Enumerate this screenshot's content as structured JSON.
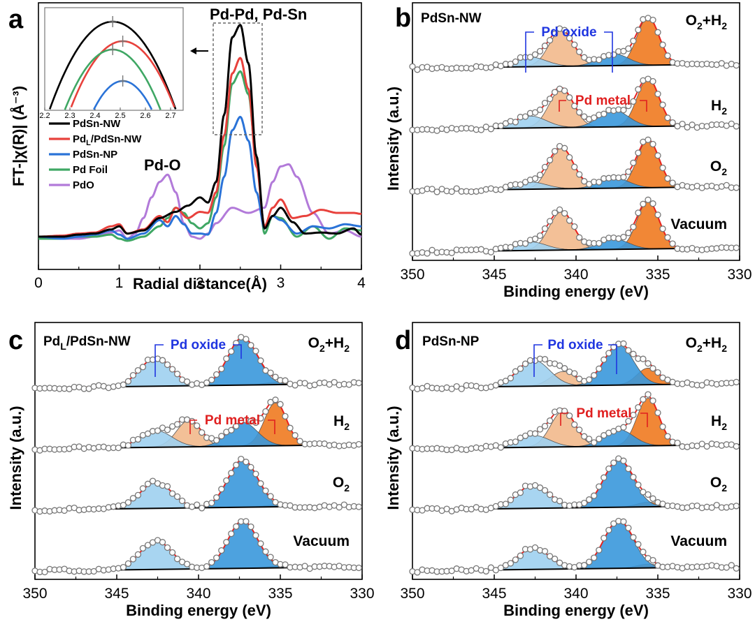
{
  "panel_labels": [
    "a",
    "b",
    "c",
    "d"
  ],
  "colors": {
    "pdsn_nw": "#000000",
    "pdl_pdsn_nw": "#e8413c",
    "pdsn_np": "#2a73d8",
    "pd_foil": "#3fa764",
    "pdo": "#b27ad9",
    "oxide_light": "#9fd0f0",
    "oxide_dark": "#3a98dc",
    "metal_light": "#f2b98c",
    "metal_dark": "#ef7a20",
    "tag_blue": "#1f35e0",
    "tag_red": "#e01f1f"
  },
  "chart_data": [
    {
      "panel": "a",
      "type": "line",
      "title": "",
      "xlabel": "Radial distance(Å)",
      "ylabel": "FT-|χ(R)| (Å⁻³)",
      "xlim": [
        0,
        4
      ],
      "xticks": [
        "0",
        "1",
        "2",
        "3",
        "4"
      ],
      "annotations": [
        "Pd-Pd, Pd-Sn",
        "Pd-O"
      ],
      "series": [
        {
          "name": "PdSn-NW",
          "x": [
            0,
            0.3,
            0.5,
            0.7,
            0.9,
            1.0,
            1.1,
            1.3,
            1.5,
            1.7,
            1.85,
            2.0,
            2.1,
            2.2,
            2.3,
            2.4,
            2.5,
            2.6,
            2.7,
            2.8,
            2.9,
            3.0,
            3.15,
            3.3,
            3.5,
            3.7,
            3.9,
            4.0
          ],
          "y": [
            0.02,
            0.02,
            0.04,
            0.05,
            0.09,
            0.12,
            0.05,
            0.08,
            0.2,
            0.26,
            0.32,
            0.4,
            0.35,
            0.55,
            1.2,
            1.95,
            2.07,
            1.7,
            0.8,
            0.1,
            0.22,
            0.3,
            0.16,
            0.05,
            0.06,
            0.05,
            0.1,
            0.04
          ]
        },
        {
          "name": "PdL/PdSn-NW",
          "x": [
            0,
            0.3,
            0.5,
            0.7,
            0.9,
            1.0,
            1.1,
            1.3,
            1.5,
            1.6,
            1.7,
            1.85,
            2.0,
            2.1,
            2.2,
            2.3,
            2.4,
            2.5,
            2.6,
            2.7,
            2.8,
            2.9,
            3.0,
            3.15,
            3.3,
            3.5,
            3.7,
            3.9,
            4.0
          ],
          "y": [
            0.02,
            0.03,
            0.05,
            0.06,
            0.12,
            0.14,
            0.05,
            0.09,
            0.22,
            0.16,
            0.3,
            0.2,
            0.26,
            0.25,
            0.45,
            1.0,
            1.6,
            1.75,
            1.45,
            0.7,
            0.12,
            0.3,
            0.38,
            0.2,
            0.22,
            0.28,
            0.25,
            0.25,
            0.24
          ]
        },
        {
          "name": "PdSn-NP",
          "x": [
            0,
            0.3,
            0.5,
            0.7,
            0.9,
            1.0,
            1.1,
            1.3,
            1.5,
            1.6,
            1.7,
            1.8,
            1.9,
            2.0,
            2.1,
            2.2,
            2.3,
            2.4,
            2.5,
            2.6,
            2.7,
            2.8,
            2.9,
            3.0,
            3.2,
            3.4,
            3.6,
            3.8,
            4.0
          ],
          "y": [
            0.02,
            0.0,
            0.02,
            0.04,
            0.08,
            0.04,
            0.0,
            0.05,
            0.18,
            0.12,
            0.22,
            0.14,
            0.05,
            0.05,
            0.04,
            0.25,
            0.6,
            1.05,
            1.18,
            0.95,
            0.45,
            0.1,
            0.22,
            0.18,
            0.05,
            0.12,
            0.1,
            0.14,
            0.12
          ]
        },
        {
          "name": "Pd Foil",
          "x": [
            0,
            0.3,
            0.5,
            0.7,
            0.9,
            1.0,
            1.1,
            1.3,
            1.5,
            1.6,
            1.7,
            1.8,
            1.9,
            2.0,
            2.1,
            2.2,
            2.3,
            2.4,
            2.5,
            2.6,
            2.7,
            2.8,
            2.9,
            3.0,
            3.2,
            3.4,
            3.6,
            3.8,
            4.0
          ],
          "y": [
            0.0,
            0.0,
            0.02,
            0.02,
            0.04,
            0.0,
            -0.02,
            0.02,
            0.12,
            0.2,
            0.3,
            0.25,
            0.15,
            0.1,
            0.15,
            0.4,
            0.9,
            1.5,
            1.62,
            1.4,
            0.75,
            0.05,
            0.22,
            0.2,
            0.02,
            0.12,
            0.0,
            0.1,
            0.08
          ]
        },
        {
          "name": "PdO",
          "x": [
            0,
            0.3,
            0.5,
            0.7,
            0.9,
            1.0,
            1.1,
            1.2,
            1.3,
            1.4,
            1.5,
            1.6,
            1.7,
            1.8,
            1.9,
            2.0,
            2.1,
            2.2,
            2.4,
            2.6,
            2.8,
            2.9,
            3.0,
            3.1,
            3.2,
            3.4,
            3.6,
            3.8,
            4.0
          ],
          "y": [
            0.0,
            0.0,
            0.0,
            0.02,
            0.06,
            0.08,
            0.0,
            0.05,
            0.2,
            0.4,
            0.55,
            0.62,
            0.45,
            0.15,
            0.02,
            0.0,
            0.05,
            0.15,
            0.3,
            0.25,
            0.3,
            0.55,
            0.7,
            0.72,
            0.6,
            0.25,
            0.05,
            0.08,
            0.02
          ]
        }
      ],
      "legend": [
        "PdSn-NW",
        "PdL/PdSn-NW",
        "PdSn-NP",
        "Pd Foil",
        "PdO"
      ],
      "legend_position": "upper-left",
      "inset": {
        "xlim": [
          2.2,
          2.75
        ],
        "xticks": [
          "2.2",
          "2.3",
          "2.4",
          "2.5",
          "2.6",
          "2.7"
        ]
      }
    },
    {
      "panel": "b",
      "type": "line",
      "sample": "PdSn-NW",
      "xlabel": "Binding energy (eV)",
      "ylabel": "Intensity (a.u.)",
      "xlim": [
        350,
        330
      ],
      "xticks": [
        "350",
        "345",
        "340",
        "335",
        "330"
      ],
      "conditions": [
        "O2+H2",
        "H2",
        "O2",
        "Vacuum"
      ],
      "tags": [
        "Pd oxide",
        "Pd metal"
      ],
      "peaks_eV": {
        "pd_metal": [
          340.9,
          335.6
        ],
        "pd_oxide": [
          342.8,
          337.7
        ]
      },
      "relative_heights": {
        "O2+H2": {
          "metal": [
            0.75,
            1.0
          ],
          "oxide": [
            0.2,
            0.25
          ]
        },
        "H2": {
          "metal": [
            0.8,
            1.0
          ],
          "oxide": [
            0.25,
            0.35
          ]
        },
        "O2": {
          "metal": [
            0.85,
            1.0
          ],
          "oxide": [
            0.15,
            0.22
          ]
        },
        "Vacuum": {
          "metal": [
            0.8,
            1.0
          ],
          "oxide": [
            0.18,
            0.22
          ]
        }
      }
    },
    {
      "panel": "c",
      "type": "line",
      "sample": "PdL/PdSn-NW",
      "xlabel": "Binding energy (eV)",
      "ylabel": "Intensity (a.u.)",
      "xlim": [
        350,
        330
      ],
      "xticks": [
        "350",
        "345",
        "340",
        "335",
        "330"
      ],
      "conditions": [
        "O2+H2",
        "H2",
        "O2",
        "Vacuum"
      ],
      "tags": [
        "Pd oxide",
        "Pd metal"
      ],
      "peaks_eV": {
        "pd_metal": [
          340.6,
          335.3
        ],
        "pd_oxide": [
          342.6,
          337.3
        ]
      },
      "relative_heights": {
        "O2+H2": {
          "metal": [
            0.0,
            0.05
          ],
          "oxide": [
            0.6,
            1.0
          ]
        },
        "H2": {
          "metal": [
            0.55,
            0.9
          ],
          "oxide": [
            0.35,
            0.5
          ]
        },
        "O2": {
          "metal": [
            0.0,
            0.04
          ],
          "oxide": [
            0.55,
            1.0
          ]
        },
        "Vacuum": {
          "metal": [
            0.0,
            0.03
          ],
          "oxide": [
            0.6,
            1.0
          ]
        }
      }
    },
    {
      "panel": "d",
      "type": "line",
      "sample": "PdSn-NP",
      "xlabel": "Binding energy (eV)",
      "ylabel": "Intensity (a.u.)",
      "xlim": [
        350,
        330
      ],
      "xticks": [
        "350",
        "345",
        "340",
        "335",
        "330"
      ],
      "conditions": [
        "O2+H2",
        "H2",
        "O2",
        "Vacuum"
      ],
      "tags": [
        "Pd oxide",
        "Pd metal"
      ],
      "peaks_eV": {
        "pd_metal": [
          340.8,
          335.6
        ],
        "pd_oxide": [
          342.6,
          337.4
        ]
      },
      "relative_heights": {
        "O2+H2": {
          "metal": [
            0.3,
            0.35
          ],
          "oxide": [
            0.55,
            0.85
          ]
        },
        "H2": {
          "metal": [
            0.75,
            1.0
          ],
          "oxide": [
            0.25,
            0.35
          ]
        },
        "O2": {
          "metal": [
            0.0,
            0.1
          ],
          "oxide": [
            0.5,
            1.0
          ]
        },
        "Vacuum": {
          "metal": [
            0.0,
            0.08
          ],
          "oxide": [
            0.45,
            1.0
          ]
        }
      }
    }
  ]
}
